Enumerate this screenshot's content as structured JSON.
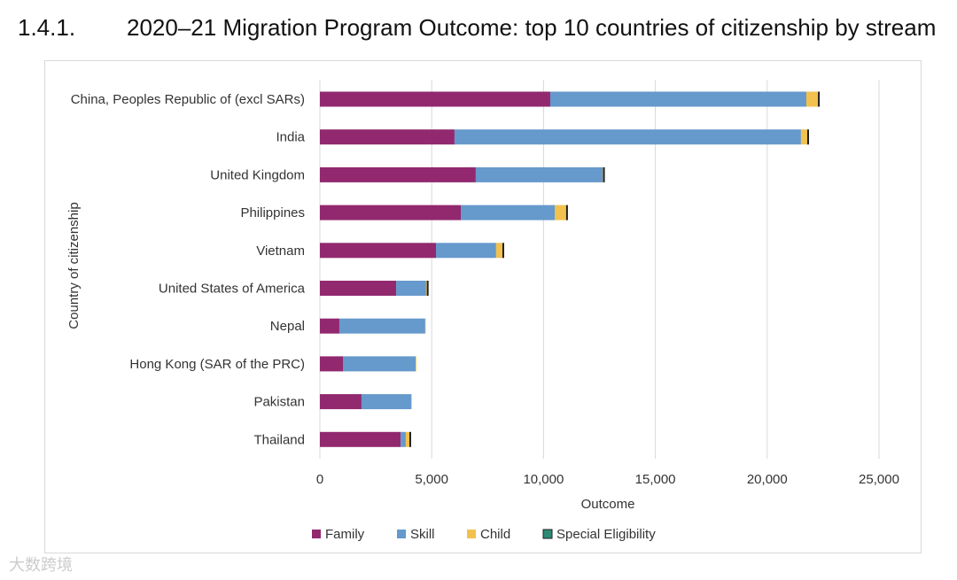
{
  "title": {
    "number": "1.4.1.",
    "text": "2020–21 Migration Program Outcome: top 10 countries of citizenship by stream"
  },
  "chart_data": {
    "type": "bar",
    "orientation": "horizontal-stacked",
    "categories": [
      "China, Peoples Republic of (excl SARs)",
      "India",
      "United Kingdom",
      "Philippines",
      "Vietnam",
      "United States of America",
      "Nepal",
      "Hong Kong (SAR of the PRC)",
      "Pakistan",
      "Thailand"
    ],
    "series": [
      {
        "name": "Family",
        "color": "#92296f",
        "values": [
          10300,
          6020,
          6970,
          6300,
          5190,
          3410,
          870,
          1030,
          1860,
          3610
        ]
      },
      {
        "name": "Skill",
        "color": "#6699cc",
        "values": [
          11450,
          15490,
          5670,
          4200,
          2690,
          1340,
          3840,
          3250,
          2220,
          230
        ]
      },
      {
        "name": "Child",
        "color": "#f2c14e",
        "values": [
          520,
          280,
          20,
          510,
          280,
          30,
          20,
          30,
          30,
          160
        ]
      },
      {
        "name": "Special Eligibility",
        "color": "#1e1e1e",
        "legend_color": "#2e8b73",
        "values": [
          10,
          60,
          60,
          70,
          10,
          80,
          0,
          0,
          0,
          60
        ]
      }
    ],
    "xlabel": "Outcome",
    "ylabel": "Country of citizenship",
    "xlim": [
      0,
      25000
    ],
    "xticks": [
      "0",
      "5,000",
      "10,000",
      "15,000",
      "20,000",
      "25,000"
    ],
    "xtick_values": [
      0,
      5000,
      10000,
      15000,
      20000,
      25000
    ],
    "grid": true,
    "legend_position": "bottom"
  },
  "watermark": "大数跨境"
}
